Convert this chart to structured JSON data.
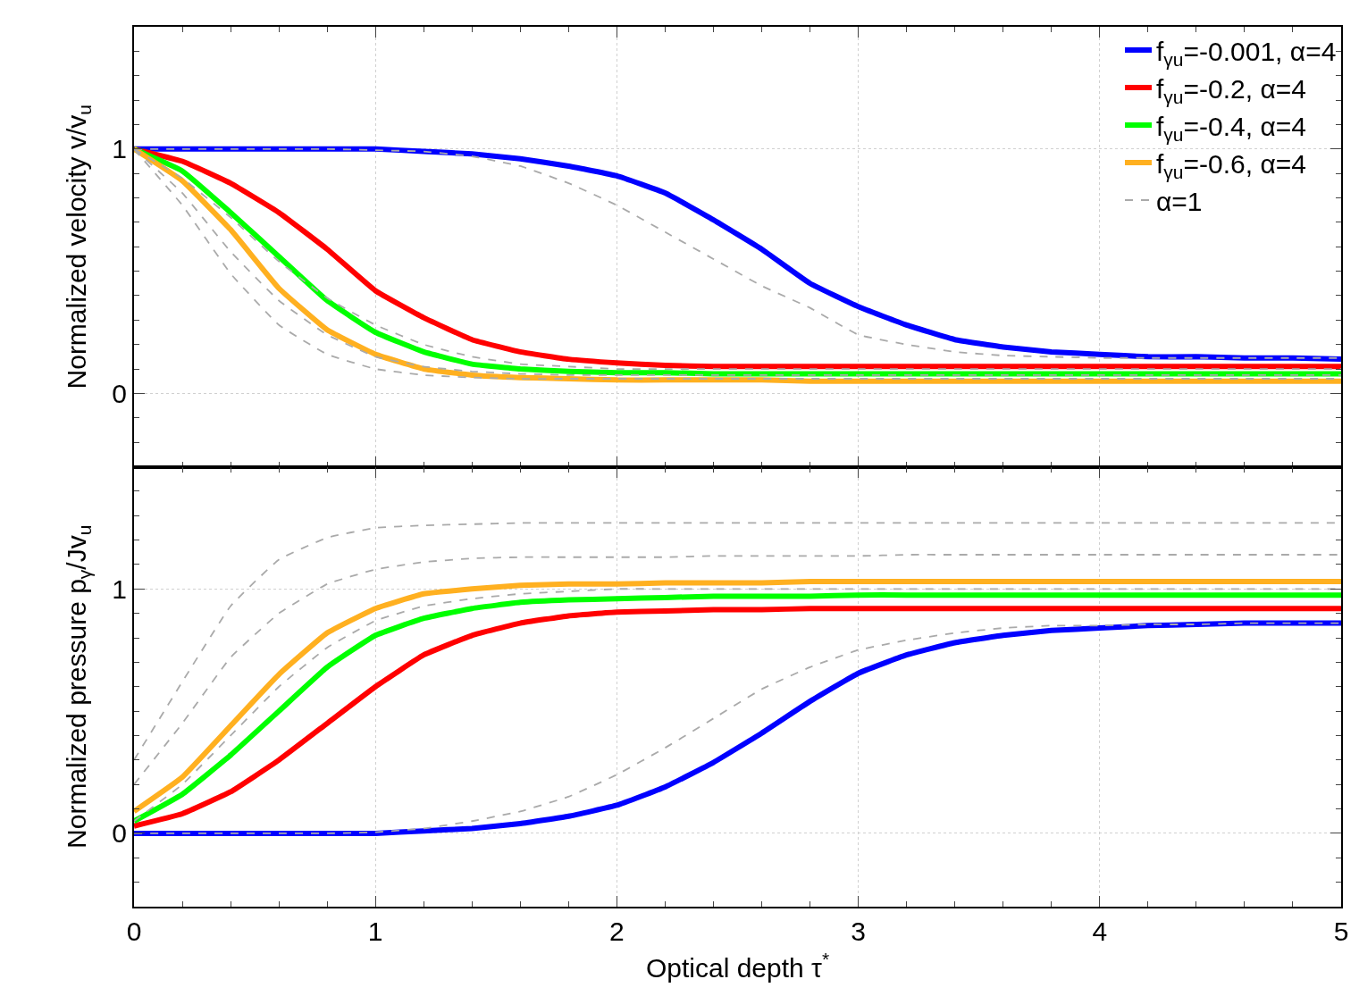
{
  "chart_data": [
    {
      "type": "line",
      "ylabel": "Normalized velocity v/v$_{u}$",
      "x": [
        0,
        0.2,
        0.4,
        0.6,
        0.8,
        1.0,
        1.2,
        1.4,
        1.6,
        1.8,
        2.0,
        2.2,
        2.4,
        2.6,
        2.8,
        3.0,
        3.2,
        3.4,
        3.6,
        3.8,
        4.0,
        4.2,
        4.4,
        4.6,
        4.8,
        5.0
      ],
      "xlim": [
        0,
        5
      ],
      "xticks": [
        0,
        1,
        2,
        3,
        4,
        5
      ],
      "ylim": [
        -0.3,
        1.5
      ],
      "yticks": [
        0,
        1
      ],
      "tick_labels": "y",
      "grid": true,
      "legend": "top right",
      "series": [
        {
          "name": "f$_{γu}$=-0.001, α=4",
          "color": "#0000ff",
          "line_style": "solid",
          "values": [
            1,
            1,
            1,
            1,
            1,
            1,
            0.99,
            0.98,
            0.96,
            0.93,
            0.89,
            0.82,
            0.71,
            0.59,
            0.45,
            0.355,
            0.28,
            0.22,
            0.19,
            0.17,
            0.16,
            0.15,
            0.15,
            0.145,
            0.145,
            0.14
          ]
        },
        {
          "name": "f$_{γu}$=-0.2, α=4",
          "color": "#ff0000",
          "line_style": "solid",
          "values": [
            1,
            0.95,
            0.86,
            0.74,
            0.59,
            0.42,
            0.31,
            0.22,
            0.17,
            0.14,
            0.125,
            0.115,
            0.11,
            0.11,
            0.11,
            0.11,
            0.11,
            0.11,
            0.11,
            0.11,
            0.11,
            0.11,
            0.11,
            0.11,
            0.11,
            0.11
          ]
        },
        {
          "name": "f$_{γu}$=-0.4, α=4",
          "color": "#00ff00",
          "line_style": "solid",
          "values": [
            1,
            0.91,
            0.74,
            0.56,
            0.38,
            0.25,
            0.17,
            0.12,
            0.1,
            0.09,
            0.085,
            0.085,
            0.08,
            0.08,
            0.08,
            0.08,
            0.08,
            0.08,
            0.08,
            0.08,
            0.08,
            0.08,
            0.08,
            0.08,
            0.08,
            0.08
          ]
        },
        {
          "name": "f$_{γu}$=-0.6, α=4",
          "color": "#ffb020",
          "line_style": "solid",
          "values": [
            1,
            0.87,
            0.67,
            0.43,
            0.26,
            0.16,
            0.1,
            0.075,
            0.065,
            0.06,
            0.055,
            0.055,
            0.055,
            0.055,
            0.05,
            0.05,
            0.05,
            0.05,
            0.05,
            0.05,
            0.05,
            0.05,
            0.05,
            0.05,
            0.05,
            0.05
          ]
        },
        {
          "name": "α=1",
          "color": "#aaaaaa",
          "line_style": "dashed",
          "values": [
            1,
            1,
            1,
            1,
            1,
            0.995,
            0.99,
            0.97,
            0.93,
            0.86,
            0.77,
            0.66,
            0.55,
            0.44,
            0.35,
            0.24,
            0.2,
            0.17,
            0.155,
            0.15,
            0.145,
            0.145,
            0.145,
            0.145,
            0.145,
            0.145
          ]
        },
        {
          "color": "#aaaaaa",
          "line_style": "dashed",
          "values": [
            1,
            0.88,
            0.72,
            0.54,
            0.39,
            0.28,
            0.2,
            0.15,
            0.12,
            0.11,
            0.1,
            0.1,
            0.1,
            0.1,
            0.1,
            0.1,
            0.1,
            0.1,
            0.1,
            0.1,
            0.1,
            0.1,
            0.1,
            0.1,
            0.1,
            0.1
          ]
        },
        {
          "color": "#aaaaaa",
          "line_style": "dashed",
          "values": [
            1,
            0.82,
            0.58,
            0.38,
            0.24,
            0.15,
            0.11,
            0.09,
            0.08,
            0.075,
            0.075,
            0.075,
            0.075,
            0.075,
            0.075,
            0.075,
            0.075,
            0.075,
            0.075,
            0.075,
            0.075,
            0.075,
            0.075,
            0.075,
            0.075,
            0.075
          ]
        },
        {
          "color": "#aaaaaa",
          "line_style": "dashed",
          "values": [
            1,
            0.77,
            0.49,
            0.28,
            0.16,
            0.1,
            0.075,
            0.065,
            0.06,
            0.06,
            0.06,
            0.06,
            0.06,
            0.06,
            0.06,
            0.06,
            0.06,
            0.06,
            0.06,
            0.06,
            0.06,
            0.06,
            0.06,
            0.06,
            0.06,
            0.06
          ]
        }
      ]
    },
    {
      "type": "line",
      "xlabel": "Optical depth τ$^{*}$",
      "ylabel": "Normalized pressure p$_{γ}$/Jv$_{u}$",
      "x": [
        0,
        0.2,
        0.4,
        0.6,
        0.8,
        1.0,
        1.2,
        1.4,
        1.6,
        1.8,
        2.0,
        2.2,
        2.4,
        2.6,
        2.8,
        3.0,
        3.2,
        3.4,
        3.6,
        3.8,
        4.0,
        4.2,
        4.4,
        4.6,
        4.8,
        5.0
      ],
      "xlim": [
        0,
        5
      ],
      "xticks": [
        0,
        1,
        2,
        3,
        4,
        5
      ],
      "ylim": [
        -0.3,
        1.5
      ],
      "yticks": [
        0,
        1
      ],
      "grid": true,
      "series": [
        {
          "color": "#0000ff",
          "line_style": "solid",
          "values": [
            0,
            0,
            0,
            0,
            0,
            0,
            0.01,
            0.02,
            0.04,
            0.07,
            0.115,
            0.19,
            0.29,
            0.41,
            0.54,
            0.655,
            0.73,
            0.78,
            0.81,
            0.83,
            0.84,
            0.85,
            0.855,
            0.86,
            0.86,
            0.86
          ]
        },
        {
          "color": "#ff0000",
          "line_style": "solid",
          "values": [
            0.03,
            0.08,
            0.17,
            0.3,
            0.45,
            0.6,
            0.73,
            0.81,
            0.86,
            0.89,
            0.905,
            0.91,
            0.915,
            0.915,
            0.92,
            0.92,
            0.92,
            0.92,
            0.92,
            0.92,
            0.92,
            0.92,
            0.92,
            0.92,
            0.92,
            0.92
          ]
        },
        {
          "color": "#00ff00",
          "line_style": "solid",
          "values": [
            0.05,
            0.16,
            0.32,
            0.5,
            0.68,
            0.81,
            0.88,
            0.92,
            0.945,
            0.955,
            0.96,
            0.965,
            0.97,
            0.97,
            0.97,
            0.975,
            0.975,
            0.975,
            0.975,
            0.975,
            0.975,
            0.975,
            0.975,
            0.975,
            0.975,
            0.975
          ]
        },
        {
          "color": "#ffb020",
          "line_style": "solid",
          "values": [
            0.09,
            0.23,
            0.44,
            0.65,
            0.82,
            0.92,
            0.98,
            1.0,
            1.015,
            1.02,
            1.02,
            1.025,
            1.025,
            1.025,
            1.03,
            1.03,
            1.03,
            1.03,
            1.03,
            1.03,
            1.03,
            1.03,
            1.03,
            1.03,
            1.03,
            1.03
          ]
        },
        {
          "color": "#aaaaaa",
          "line_style": "dashed",
          "values": [
            0,
            0,
            0,
            0,
            0,
            0.005,
            0.02,
            0.05,
            0.09,
            0.15,
            0.24,
            0.35,
            0.47,
            0.59,
            0.68,
            0.75,
            0.79,
            0.82,
            0.84,
            0.85,
            0.85,
            0.855,
            0.855,
            0.86,
            0.86,
            0.86
          ]
        },
        {
          "color": "#aaaaaa",
          "line_style": "dashed",
          "values": [
            0.05,
            0.2,
            0.4,
            0.6,
            0.76,
            0.87,
            0.93,
            0.96,
            0.98,
            0.99,
            1.0,
            1.0,
            1.0,
            1.0,
            1.0,
            1.0,
            1.0,
            1.0,
            1.0,
            1.0,
            1.0,
            1.0,
            1.0,
            1.0,
            1.0,
            1.0
          ]
        },
        {
          "color": "#aaaaaa",
          "line_style": "dashed",
          "values": [
            0.2,
            0.45,
            0.72,
            0.9,
            1.02,
            1.08,
            1.11,
            1.125,
            1.13,
            1.13,
            1.13,
            1.13,
            1.135,
            1.135,
            1.135,
            1.135,
            1.14,
            1.14,
            1.14,
            1.14,
            1.14,
            1.14,
            1.14,
            1.14,
            1.14,
            1.14
          ]
        },
        {
          "color": "#aaaaaa",
          "line_style": "dashed",
          "values": [
            0.3,
            0.62,
            0.93,
            1.12,
            1.21,
            1.25,
            1.26,
            1.265,
            1.27,
            1.27,
            1.27,
            1.27,
            1.27,
            1.27,
            1.27,
            1.27,
            1.27,
            1.27,
            1.27,
            1.27,
            1.27,
            1.27,
            1.27,
            1.27,
            1.27,
            1.27
          ]
        }
      ]
    }
  ]
}
